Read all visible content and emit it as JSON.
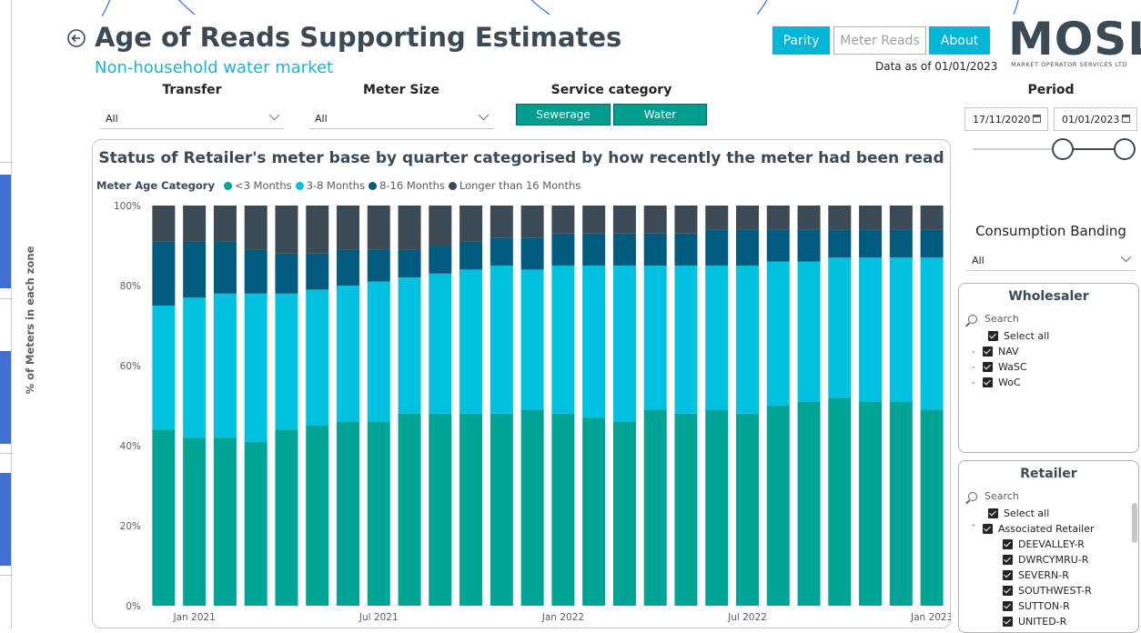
{
  "header": {
    "title": "Age of Reads Supporting Estimates",
    "subtitle": "Non-household water market",
    "data_as_of": "Data as of 01/01/2023",
    "buttons": {
      "parity": "Parity",
      "meter_reads": "Meter Reads",
      "about": "About"
    },
    "logo": {
      "text": "MOSL",
      "tagline": "MARKET OPERATOR SERVICES LTD"
    }
  },
  "filters": {
    "transfer": {
      "label": "Transfer",
      "value": "All"
    },
    "meter_size": {
      "label": "Meter Size",
      "value": "All"
    },
    "service_category": {
      "label": "Service category",
      "options": [
        "Sewerage",
        "Water"
      ]
    },
    "period": {
      "label": "Period",
      "start": "17/11/2020",
      "end": "01/01/2023"
    },
    "consumption_banding": {
      "label": "Consumption Banding",
      "value": "All"
    }
  },
  "wholesaler": {
    "title": "Wholesaler",
    "search_placeholder": "Search",
    "items": [
      "Select all",
      "NAV",
      "WaSC",
      "WoC"
    ]
  },
  "retailer": {
    "title": "Retailer",
    "search_placeholder": "Search",
    "items": [
      "Select all",
      "Associated Retailer",
      "DEEVALLEY-R",
      "DWRCYMRU-R",
      "SEVERN-R",
      "SOUTHWEST-R",
      "SUTTON-R",
      "UNITED-R"
    ]
  },
  "colors": {
    "lt3": "#00a495",
    "m3_8": "#00c2e0",
    "m8_16": "#005b7f",
    "gt16": "#3b4a55",
    "accent": "#00b7d8"
  },
  "chart_data": {
    "type": "bar",
    "stacked": true,
    "title": "Status of Retailer's meter base by quarter categorised by how recently the meter had been read",
    "legend_title": "Meter Age Category",
    "ylabel": "% of Meters in each zone",
    "ylim": [
      0,
      100
    ],
    "y_ticks": [
      "100%",
      "80%",
      "60%",
      "40%",
      "20%",
      "0%"
    ],
    "x_tick_labels": [
      "Jan 2021",
      "Jul 2021",
      "Jan 2022",
      "Jul 2022",
      "Jan 2023"
    ],
    "series": [
      {
        "name": "<3 Months",
        "values": [
          44,
          42,
          42,
          41,
          44,
          45,
          46,
          46,
          48,
          48,
          48,
          48,
          49,
          48,
          47,
          46,
          49,
          48,
          49,
          48,
          50,
          51,
          52,
          51,
          51,
          49
        ]
      },
      {
        "name": "3-8 Months",
        "values": [
          31,
          35,
          36,
          37,
          34,
          34,
          34,
          35,
          34,
          35,
          36,
          37,
          35,
          37,
          38,
          39,
          36,
          37,
          36,
          37,
          36,
          35,
          35,
          36,
          36,
          38
        ]
      },
      {
        "name": "8-16 Months",
        "values": [
          16,
          14,
          13,
          11,
          10,
          9,
          9,
          8,
          7,
          7,
          7,
          7,
          8,
          8,
          8,
          8,
          8,
          8,
          9,
          9,
          8,
          8,
          7,
          7,
          7,
          7
        ]
      },
      {
        "name": "Longer than 16 Months",
        "values": [
          9,
          9,
          9,
          11,
          12,
          12,
          11,
          11,
          11,
          10,
          9,
          8,
          8,
          7,
          7,
          7,
          7,
          7,
          6,
          6,
          6,
          6,
          6,
          6,
          6,
          6
        ]
      }
    ]
  }
}
